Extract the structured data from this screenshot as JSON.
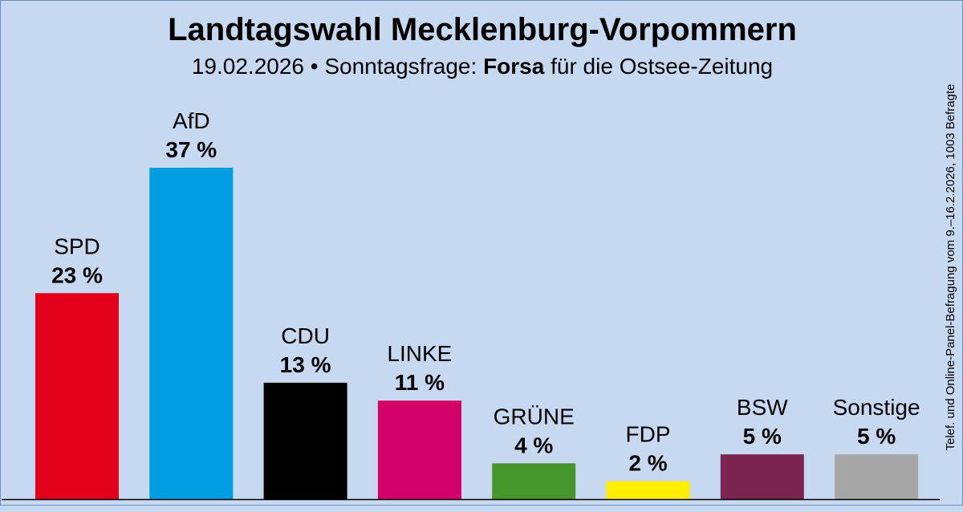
{
  "header": {
    "title": "Landtagswahl Mecklenburg-Vorpommern",
    "subtitle_date": "19.02.2026 • Sonntagsfrage:",
    "subtitle_institute": "Forsa",
    "subtitle_client": "für die Ostsee-Zeitung"
  },
  "side_note": "Telef. und Online-Panel-Befragung vom 9.–16.2.2026, 1003 Befragte",
  "chart_data": {
    "type": "bar",
    "title": "Landtagswahl Mecklenburg-Vorpommern",
    "categories": [
      "SPD",
      "AfD",
      "CDU",
      "LINKE",
      "GRÜNE",
      "FDP",
      "BSW",
      "Sonstige"
    ],
    "values": [
      23,
      37,
      13,
      11,
      4,
      2,
      5,
      5
    ],
    "value_labels": [
      "23 %",
      "37 %",
      "13 %",
      "11 %",
      "4 %",
      "2 %",
      "5 %",
      "5 %"
    ],
    "colors": [
      "#e3001b",
      "#009ee0",
      "#000000",
      "#d40069",
      "#46962b",
      "#ffed00",
      "#7b2450",
      "#a6a6a6"
    ],
    "unit": "%",
    "ylim": [
      0,
      37
    ],
    "grid": false,
    "legend": "none"
  }
}
